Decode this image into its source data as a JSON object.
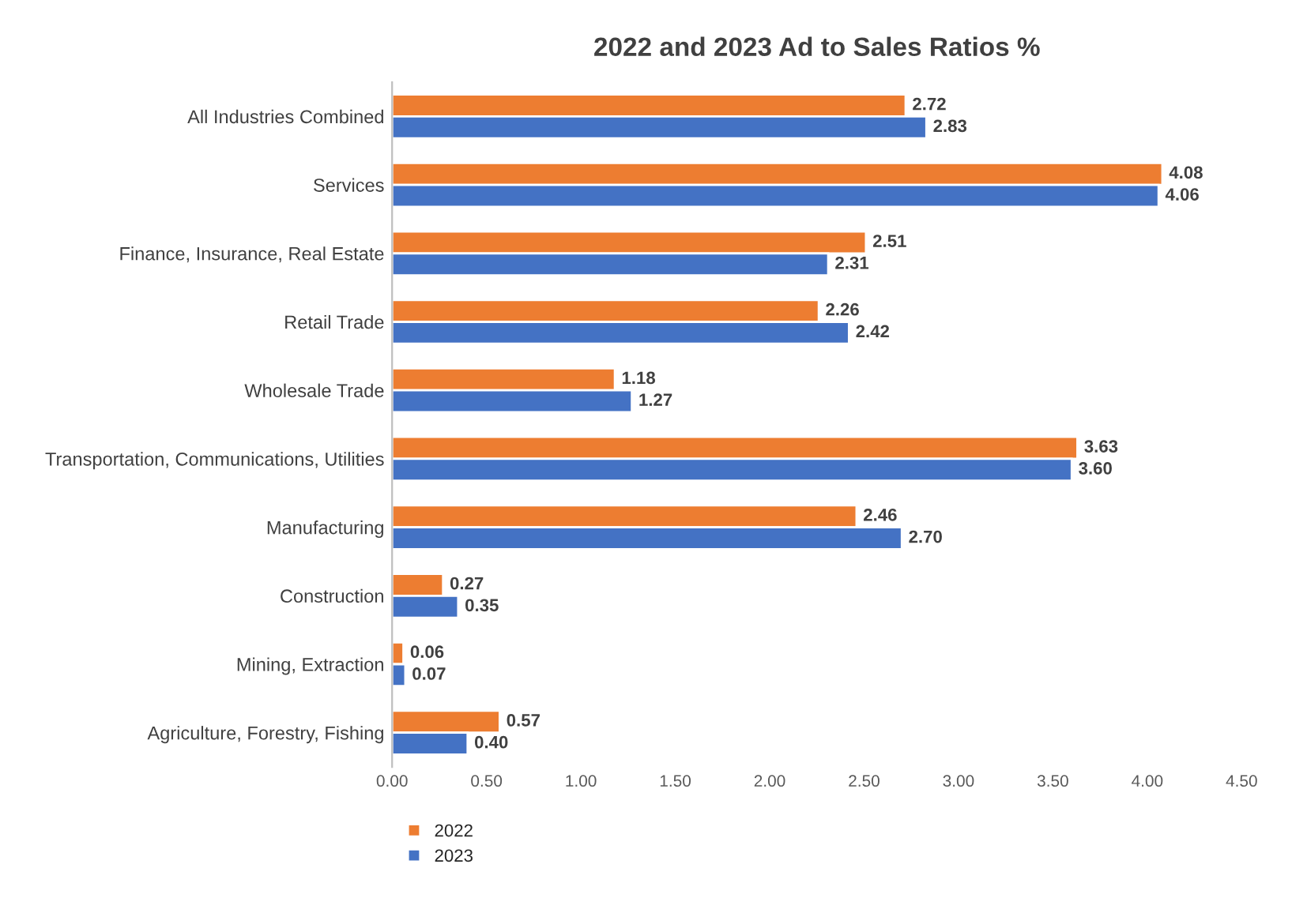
{
  "chart_data": {
    "type": "bar",
    "orientation": "horizontal",
    "title": "2022 and 2023 Ad to Sales Ratios %",
    "categories": [
      "All Industries Combined",
      "Services",
      "Finance, Insurance, Real Estate",
      "Retail Trade",
      "Wholesale Trade",
      "Transportation, Communications, Utilities",
      "Manufacturing",
      "Construction",
      "Mining, Extraction",
      "Agriculture, Forestry, Fishing"
    ],
    "series": [
      {
        "name": "2022",
        "color": "#ed7d31",
        "values": [
          2.72,
          4.08,
          2.51,
          2.26,
          1.18,
          3.63,
          2.46,
          0.27,
          0.06,
          0.57
        ],
        "value_labels": [
          "2.72",
          "4.08",
          "2.51",
          "2.26",
          "1.18",
          "3.63",
          "2.46",
          "0.27",
          "0.06",
          "0.57"
        ]
      },
      {
        "name": "2023",
        "color": "#4472c4",
        "values": [
          2.83,
          4.06,
          2.31,
          2.42,
          1.27,
          3.6,
          2.7,
          0.35,
          0.07,
          0.4
        ],
        "value_labels": [
          "2.83",
          "4.06",
          "2.31",
          "2.42",
          "1.27",
          "3.60",
          "2.70",
          "0.35",
          "0.07",
          "0.40"
        ]
      }
    ],
    "xlim": [
      0,
      4.5
    ],
    "xticks": [
      {
        "value": 0,
        "label": "0.00"
      },
      {
        "value": 0.5,
        "label": "0.50"
      },
      {
        "value": 1,
        "label": "1.00"
      },
      {
        "value": 1.5,
        "label": "1.50"
      },
      {
        "value": 2,
        "label": "2.00"
      },
      {
        "value": 2.5,
        "label": "2.50"
      },
      {
        "value": 3,
        "label": "3.00"
      },
      {
        "value": 3.5,
        "label": "3.50"
      },
      {
        "value": 4,
        "label": "4.00"
      },
      {
        "value": 4.5,
        "label": "4.50"
      }
    ],
    "grid": false,
    "legend": "bottom left"
  }
}
